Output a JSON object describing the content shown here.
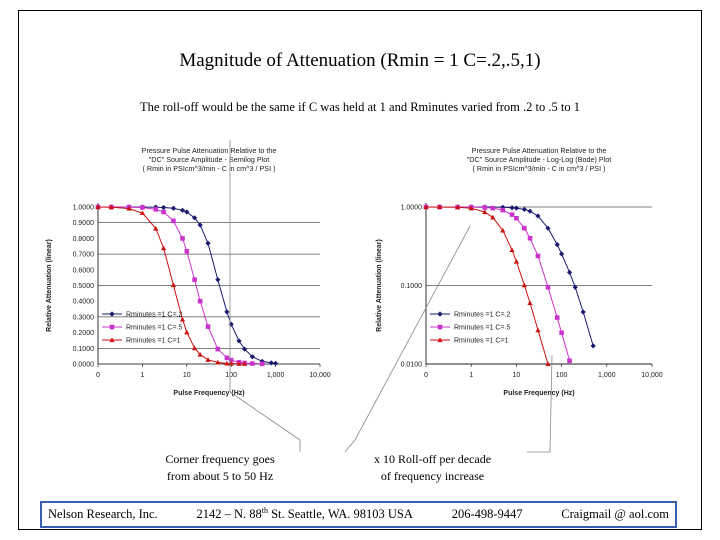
{
  "slide": {
    "title": "Magnitude of Attenuation (Rmin = 1 C=.2,.5,1)",
    "subtitle": "The roll-off would be the same if C was held at 1 and Rminutes varied from .2 to .5 to 1",
    "note_left": [
      "Corner frequency goes",
      "from about 5 to 50 Hz"
    ],
    "note_right": [
      "x 10 Roll-off per decade",
      "of frequency increase"
    ],
    "footer": {
      "company": "Nelson Research, Inc.",
      "address_pre": "2142 – N. 88",
      "address_sup": "th",
      "address_post": " St. Seattle, WA. 98103  USA",
      "phone": "206-498-9447",
      "email": "Craigmail @ aol.com"
    }
  },
  "colors": {
    "series1": "#1a1a6e",
    "series2": "#cc33cc",
    "series3": "#cc1111",
    "footer_border": "#3a5fb0"
  },
  "chart_data": [
    {
      "type": "line",
      "title": [
        "Pressure Pulse Attenuation Relative to the",
        "\"DC\" Source Amplitude - Semilog Plot",
        "( Rmin in PSIcm^3/min - C in cm^3 / PSI )"
      ],
      "xlabel": "Pulse Frequency (Hz)",
      "ylabel": "Relative Attenuation (linear)",
      "xscale": "log",
      "yscale": "linear",
      "xlim": [
        0.1,
        10000
      ],
      "ylim": [
        0,
        1
      ],
      "xticks": [
        "0",
        "1",
        "10",
        "100",
        "1,000",
        "10,000"
      ],
      "yticks": [
        "0.0000",
        "0.1000",
        "0.2000",
        "0.3000",
        "0.4000",
        "0.5000",
        "0.6000",
        "0.7000",
        "0.8000",
        "0.9000",
        "1.0000"
      ],
      "legend_position": "bottom-left",
      "series": [
        {
          "name": "Rminutes =1 C=.2",
          "marker": "diamond",
          "color": "#1a1a6e",
          "x": [
            0.1,
            0.2,
            0.5,
            1,
            2,
            3,
            5,
            8,
            10,
            15,
            20,
            30,
            50,
            80,
            100,
            150,
            200,
            300,
            500,
            800,
            1000
          ],
          "y": [
            1,
            1,
            1,
            1,
            0.999,
            0.997,
            0.992,
            0.979,
            0.968,
            0.931,
            0.885,
            0.769,
            0.537,
            0.332,
            0.253,
            0.147,
            0.095,
            0.046,
            0.017,
            0.007,
            0.004
          ]
        },
        {
          "name": "Rminutes =1 C=.5",
          "marker": "square",
          "color": "#cc33cc",
          "x": [
            0.1,
            0.2,
            0.5,
            1,
            2,
            3,
            5,
            8,
            10,
            15,
            20,
            30,
            50,
            80,
            100,
            150,
            200,
            300,
            500
          ],
          "y": [
            1,
            1,
            0.999,
            0.997,
            0.985,
            0.968,
            0.912,
            0.8,
            0.718,
            0.537,
            0.4,
            0.238,
            0.095,
            0.039,
            0.025,
            0.011,
            0.006,
            0.003,
            0.001
          ]
        },
        {
          "name": "Rminutes =1 C=1",
          "marker": "triangle",
          "color": "#cc1111",
          "x": [
            0.1,
            0.2,
            0.5,
            1,
            2,
            3,
            5,
            8,
            10,
            15,
            20,
            30,
            50,
            80,
            100,
            150,
            200
          ],
          "y": [
            1,
            0.998,
            0.99,
            0.962,
            0.863,
            0.738,
            0.503,
            0.284,
            0.202,
            0.101,
            0.06,
            0.027,
            0.01,
            0.004,
            0.003,
            0.001,
            0.001
          ]
        }
      ]
    },
    {
      "type": "line",
      "title": [
        "Pressure Pulse Attenuation Relative to the",
        "\"DC\" Source Amplitude - Log-Log (Bode) Plot",
        "( Rmin in PSIcm^3/min - C in cm^3 / PSI )"
      ],
      "xlabel": "Pulse Frequency (Hz)",
      "ylabel": "Relative Attenuation (linear)",
      "xscale": "log",
      "yscale": "log",
      "xlim": [
        0.1,
        10000
      ],
      "ylim": [
        0.01,
        1
      ],
      "xticks": [
        "0",
        "1",
        "10",
        "100",
        "1,000",
        "10,000"
      ],
      "yticks": [
        "0.0100",
        "0.1000",
        "1.0000"
      ],
      "legend_position": "bottom-left",
      "series": [
        {
          "name": "Rminutes =1 C=.2",
          "marker": "diamond",
          "color": "#1a1a6e",
          "x": [
            0.1,
            0.2,
            0.5,
            1,
            2,
            5,
            8,
            10,
            15,
            20,
            30,
            50,
            80,
            100,
            150,
            200,
            300,
            500
          ],
          "y": [
            1,
            1,
            1,
            1,
            0.999,
            0.992,
            0.979,
            0.968,
            0.931,
            0.885,
            0.769,
            0.537,
            0.332,
            0.253,
            0.147,
            0.095,
            0.046,
            0.017
          ]
        },
        {
          "name": "Rminutes =1 C=.5",
          "marker": "square",
          "color": "#cc33cc",
          "x": [
            0.1,
            0.2,
            0.5,
            1,
            2,
            3,
            5,
            8,
            10,
            15,
            20,
            30,
            50,
            80,
            100,
            150
          ],
          "y": [
            1,
            1,
            0.999,
            0.997,
            0.985,
            0.968,
            0.912,
            0.8,
            0.718,
            0.537,
            0.4,
            0.238,
            0.095,
            0.039,
            0.025,
            0.011
          ]
        },
        {
          "name": "Rminutes =1 C=1",
          "marker": "triangle",
          "color": "#cc1111",
          "x": [
            0.1,
            0.2,
            0.5,
            1,
            2,
            3,
            5,
            8,
            10,
            15,
            20,
            30,
            50,
            80
          ],
          "y": [
            1,
            0.998,
            0.99,
            0.962,
            0.863,
            0.738,
            0.503,
            0.284,
            0.202,
            0.101,
            0.06,
            0.027,
            0.01,
            0.004
          ]
        }
      ]
    }
  ]
}
